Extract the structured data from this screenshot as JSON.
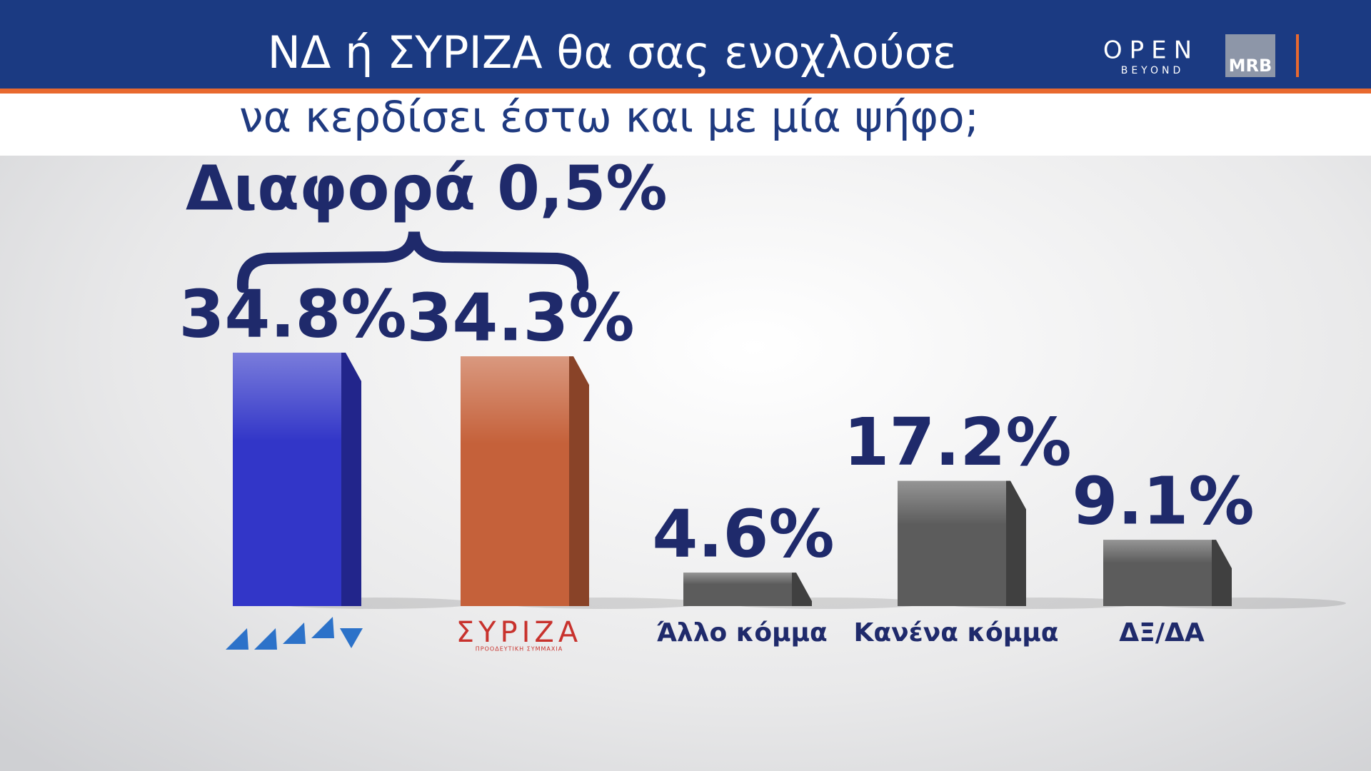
{
  "chart_data": {
    "type": "bar",
    "title": "ΝΔ ή ΣΥΡΙΖΑ θα σας ενοχλούσε",
    "subtitle": "να κερδίσει έστω και με μία ψήφο;",
    "annotation": "Διαφορά 0,5%",
    "categories": [
      null,
      "ΣΥΡΙΖΑ",
      "Άλλο κόμμα",
      "Κανένα κόμμα",
      "ΔΞ/ΔΑ"
    ],
    "logo_tagline": "ΠΡΟΟΔΕΥΤΙΚΗ ΣΥΜΜΑΧΙΑ",
    "values": [
      34.8,
      34.3,
      4.6,
      17.2,
      9.1
    ],
    "value_labels": [
      "34.8%",
      "34.3%",
      "4.6%",
      "17.2%",
      "9.1%"
    ],
    "colors": [
      "#3236c8",
      "#c5613a",
      "#5c5c5c",
      "#5c5c5c",
      "#5c5c5c"
    ]
  },
  "branding": {
    "channel": "OPEN",
    "channel_tagline": "BEYOND",
    "pollster": "MRB"
  }
}
